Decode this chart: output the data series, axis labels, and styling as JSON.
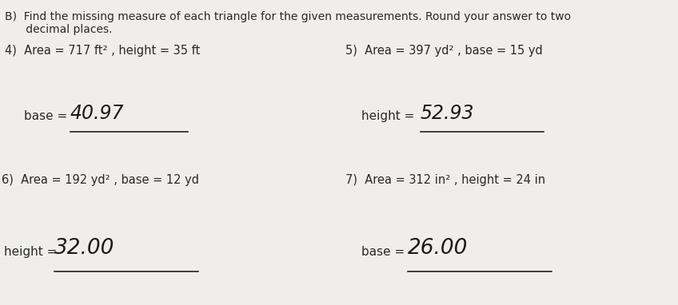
{
  "bg_color": "#f0eeea",
  "title_line1": "B)  Find the missing measure of each triangle for the given measurements. Round your answer to two",
  "title_line2": "      decimal places.",
  "q4_label": "4)  Area = 717 ft² , height = 35 ft",
  "q5_label": "5)  Area = 397 yd² , base = 15 yd",
  "q6_label": "6)  Area = 192 yd² , base = 12 yd",
  "q7_label": "7)  Area = 312 in² , height = 24 in",
  "q4_answer_label": "base = ",
  "q4_answer_value": "40.97",
  "q5_answer_label": "height = ",
  "q5_answer_value": "52.93",
  "q6_answer_label": "height = ",
  "q6_answer_value": "32.00",
  "q7_answer_label": "base = ",
  "q7_answer_value": "26.00",
  "font_color": "#2a2a2a",
  "answer_font_color": "#1a1a1a",
  "line_color": "#111111",
  "title_fontsize": 10.0,
  "label_fontsize": 10.5,
  "ans_label_fontsize": 11.0,
  "ans_value_fontsize": 17.0
}
